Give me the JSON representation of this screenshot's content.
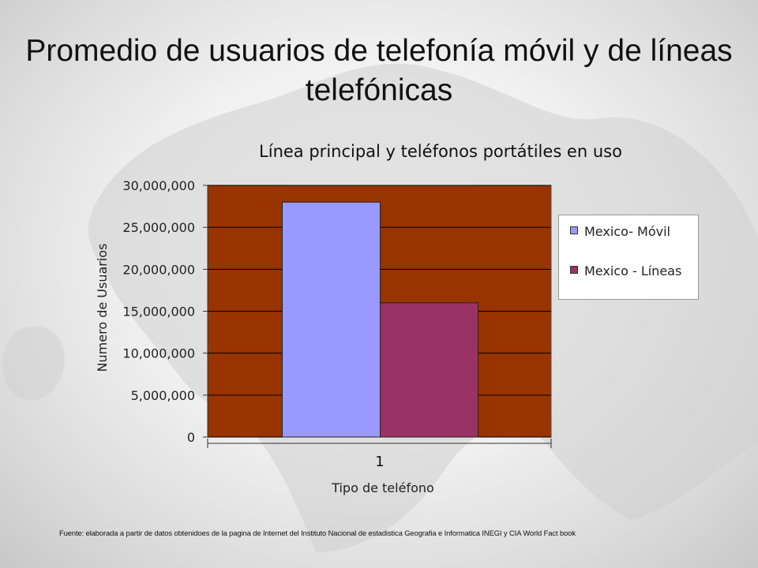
{
  "slide": {
    "title": "Promedio de usuarios de telefonía móvil y de líneas telefónicas",
    "footnote": "Fuente: elaborada a partir de datos obtenidoes de la pagina de Internet del Instituto Nacional de estadistica Geografia e Informatica INEGI y CIA World Fact book"
  },
  "colors": {
    "plot_bg": "#993300",
    "movil": "#9999ff",
    "lineas": "#993366",
    "grid": "#000000"
  },
  "chart_data": {
    "type": "bar",
    "title": "Línea principal y teléfonos portátiles en uso",
    "xlabel": "Tipo de teléfono",
    "ylabel": "Numero de Usuarios",
    "categories": [
      "1"
    ],
    "series": [
      {
        "name": "Mexico- Móvil",
        "values": [
          28000000
        ]
      },
      {
        "name": "Mexico - Líneas",
        "values": [
          16000000
        ]
      }
    ],
    "ylim": [
      0,
      30000000
    ],
    "yticks": [
      0,
      5000000,
      10000000,
      15000000,
      20000000,
      25000000,
      30000000
    ],
    "ytick_labels": [
      "0",
      "5,000,000",
      "10,000,000",
      "15,000,000",
      "20,000,000",
      "25,000,000",
      "30,000,000"
    ],
    "grid": true,
    "legend": "right"
  }
}
